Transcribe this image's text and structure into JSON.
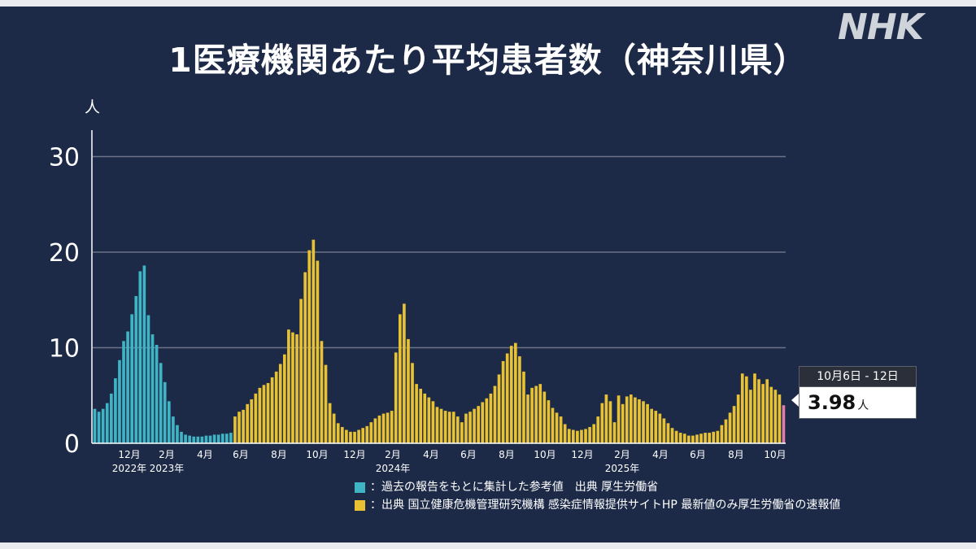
{
  "logo": "NHK",
  "colors": {
    "past": "#3fb4c4",
    "current": "#e8c233",
    "latest": "#e07fa6"
  },
  "legend": [
    {
      "color": "#3fb4c4",
      "text": "：過去の報告をもとに集計した参考値　出典 厚生労働省"
    },
    {
      "color": "#e8c233",
      "text": "：出典 国立健康危機管理研究機構 感染症情報提供サイトHP 最新値のみ厚生労働省の速報値"
    }
  ],
  "callout": {
    "date": "10月6日 - 12日",
    "value": "3.98",
    "unit": "人"
  },
  "chart_data": {
    "type": "bar",
    "title": "1医療機関あたり平均患者数（神奈川県）",
    "ylabel": "人",
    "ylim": [
      0,
      33
    ],
    "yticks": [
      0,
      10,
      20,
      30
    ],
    "grid": true,
    "series": [
      {
        "values": [
          3.6,
          3.3,
          3.6,
          4.2,
          5.2,
          6.8,
          8.7,
          10.7,
          11.7,
          13.5,
          15.4,
          18.0,
          18.6,
          13.4,
          11.4,
          10.3,
          8.4,
          6.4,
          4.4,
          2.8,
          1.9,
          1.2,
          0.9,
          0.8,
          0.7,
          0.7,
          0.7,
          0.8,
          0.8,
          0.9,
          0.9,
          1.0,
          1.0,
          1.1
        ]
      },
      {
        "values": [
          2.8,
          3.3,
          3.5,
          4.1,
          4.6,
          5.2,
          5.8,
          6.1,
          6.3,
          6.9,
          7.5,
          8.3,
          9.3,
          11.9,
          11.6,
          11.4,
          15.1,
          17.9,
          20.2,
          21.3,
          19.1,
          10.7,
          8.2,
          4.2,
          3.1,
          2.1,
          1.7,
          1.4,
          1.2,
          1.2,
          1.4,
          1.6,
          1.8,
          2.2,
          2.6,
          2.9,
          3.1,
          3.2,
          3.4,
          9.5,
          13.5,
          14.6,
          10.9,
          8.4,
          6.2,
          5.7,
          5.2,
          4.8,
          4.4,
          3.8,
          3.6,
          3.4,
          3.3,
          3.3,
          2.8,
          2.2,
          3.1,
          3.3,
          3.6,
          3.9,
          4.3,
          4.7,
          5.2,
          6.0,
          7.2,
          8.6,
          9.4,
          10.2,
          10.5,
          9.1,
          7.5,
          5.1,
          5.8,
          6.0,
          6.2,
          5.4,
          4.5,
          3.7,
          3.2,
          2.8,
          2.0,
          1.5,
          1.4,
          1.3,
          1.4,
          1.5,
          1.7,
          2.0,
          2.8,
          4.2,
          5.1,
          4.4,
          2.2,
          5.0,
          4.1,
          4.9,
          5.1,
          4.8,
          4.6,
          4.4,
          4.1,
          3.6,
          3.4,
          3.1,
          2.6,
          2.1,
          1.6,
          1.3,
          1.1,
          1.0,
          0.8,
          0.8,
          0.9,
          1.0,
          1.1,
          1.1,
          1.2,
          1.3,
          1.9,
          2.5,
          3.2,
          3.9,
          5.1,
          7.3,
          7.0,
          5.6,
          7.3,
          6.7,
          6.2,
          6.7,
          5.9,
          5.6,
          5.1
        ]
      },
      {
        "values": [
          3.98
        ]
      }
    ],
    "x_labels": [
      {
        "month": "12月",
        "year": "2022年"
      },
      {
        "month": "2月",
        "year": "2023年"
      },
      {
        "month": "4月",
        "year": ""
      },
      {
        "month": "6月",
        "year": ""
      },
      {
        "month": "8月",
        "year": ""
      },
      {
        "month": "10月",
        "year": ""
      },
      {
        "month": "12月",
        "year": ""
      },
      {
        "month": "2月",
        "year": "2024年"
      },
      {
        "month": "4月",
        "year": ""
      },
      {
        "month": "6月",
        "year": ""
      },
      {
        "month": "8月",
        "year": ""
      },
      {
        "month": "10月",
        "year": ""
      },
      {
        "month": "12月",
        "year": ""
      },
      {
        "month": "2月",
        "year": "2025年"
      },
      {
        "month": "4月",
        "year": ""
      },
      {
        "month": "6月",
        "year": ""
      },
      {
        "month": "8月",
        "year": ""
      },
      {
        "month": "10月",
        "year": ""
      }
    ]
  }
}
